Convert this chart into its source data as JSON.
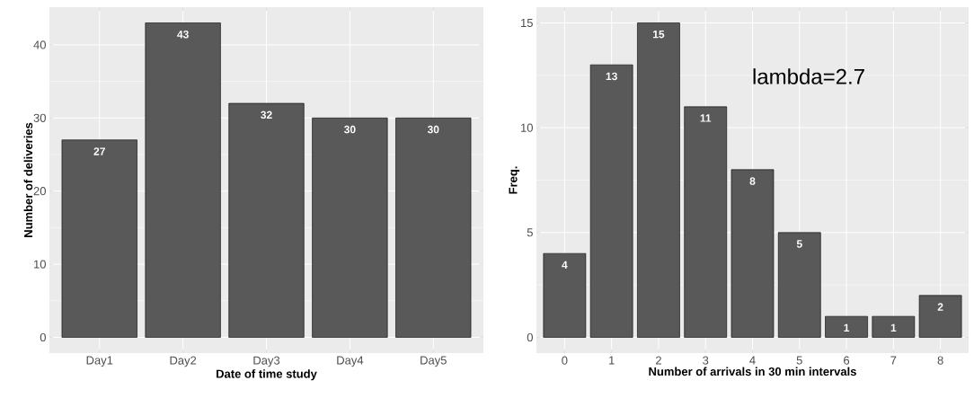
{
  "chart_data": [
    {
      "type": "bar",
      "categories": [
        "Day1",
        "Day2",
        "Day3",
        "Day4",
        "Day5"
      ],
      "values": [
        27,
        43,
        32,
        30,
        30
      ],
      "color": "#595959",
      "xlabel": "Date of time study",
      "ylabel": "Number of deliveries",
      "ylim": [
        -2.15,
        45.15
      ],
      "yticks": [
        0,
        10,
        20,
        30,
        40
      ],
      "grid": true,
      "data_labels": true
    },
    {
      "type": "bar",
      "categories": [
        "0",
        "1",
        "2",
        "3",
        "4",
        "5",
        "6",
        "7",
        "8"
      ],
      "values": [
        4,
        13,
        15,
        11,
        8,
        5,
        1,
        1,
        2
      ],
      "color": "#595959",
      "xlabel": "Number of arrivals in 30 min intervals",
      "ylabel": "Freq.",
      "ylim": [
        -0.75,
        15.75
      ],
      "yticks": [
        0,
        5,
        10,
        15
      ],
      "grid": true,
      "data_labels": true,
      "annotations": [
        "lambda=2.7"
      ]
    }
  ]
}
